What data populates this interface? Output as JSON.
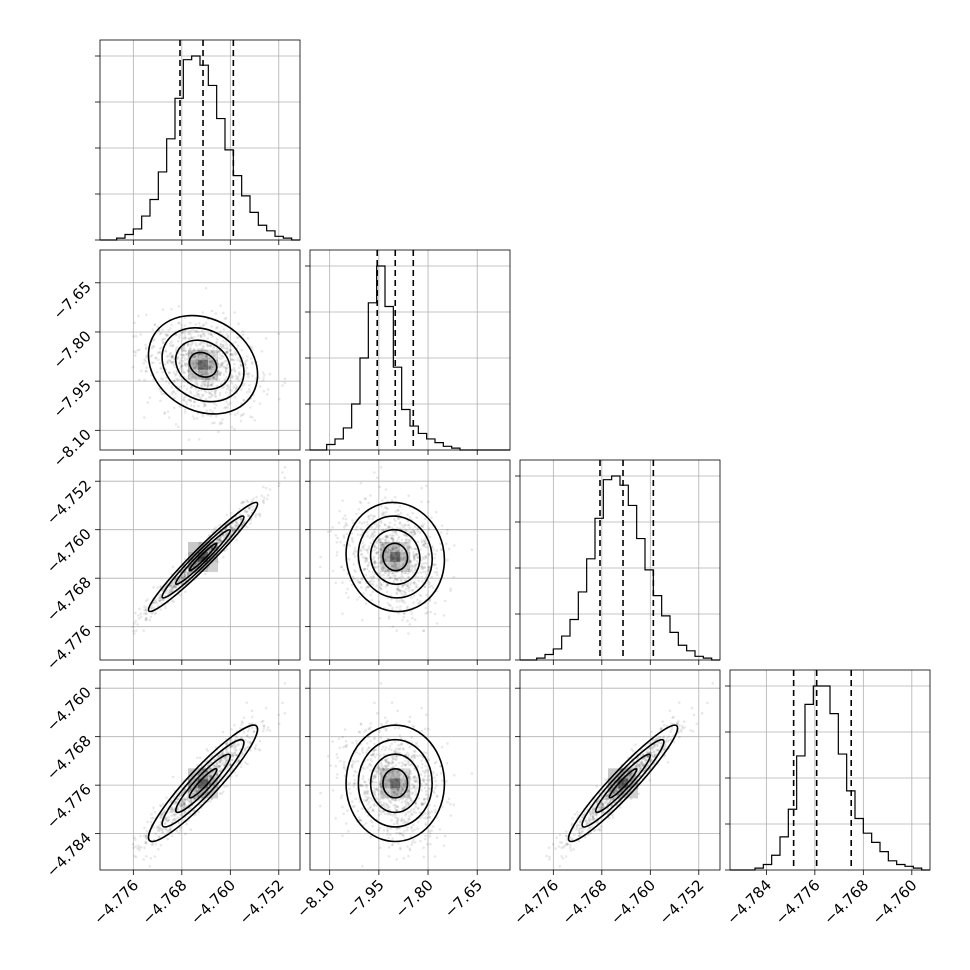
{
  "chart_data": {
    "type": "corner",
    "parameters": [
      {
        "range": [
          -4.7815,
          -4.7485
        ],
        "ticks": [
          -4.776,
          -4.768,
          -4.76,
          -4.752
        ],
        "tick_labels": [
          "−4.776",
          "−4.768",
          "−4.760",
          "−4.752"
        ],
        "mean": -4.7645,
        "sd": 0.0045,
        "quantiles": [
          -4.7683,
          -4.7645,
          -4.7595
        ]
      },
      {
        "range": [
          -8.16,
          -7.55
        ],
        "ticks": [
          -8.1,
          -7.95,
          -7.8,
          -7.65
        ],
        "tick_labels": [
          "−8.10",
          "−7.95",
          "−7.80",
          "−7.65"
        ],
        "mean": -7.9,
        "sd": 0.075,
        "quantiles": [
          -7.955,
          -7.9,
          -7.845
        ]
      },
      {
        "range": [
          -4.7815,
          -4.7485
        ],
        "ticks": [
          -4.776,
          -4.768,
          -4.76,
          -4.752
        ],
        "tick_labels": [
          "−4.776",
          "−4.768",
          "−4.760",
          "−4.752"
        ],
        "mean": -4.7645,
        "sd": 0.0045,
        "quantiles": [
          -4.7683,
          -4.7645,
          -4.7595
        ]
      },
      {
        "range": [
          -4.79,
          -4.757
        ],
        "ticks": [
          -4.784,
          -4.776,
          -4.768,
          -4.76
        ],
        "tick_labels": [
          "−4.784",
          "−4.776",
          "−4.768",
          "−4.760"
        ],
        "mean": -4.7757,
        "sd": 0.0048,
        "quantiles": [
          -4.7795,
          -4.7757,
          -4.77
        ]
      }
    ],
    "correlations": {
      "1-0": -0.2,
      "2-0": 0.97,
      "2-1": -0.05,
      "3-0": 0.93,
      "3-1": 0.0,
      "3-2": 0.95
    },
    "histograms": [
      {
        "bins": 24,
        "counts": [
          0,
          0,
          1,
          3,
          6,
          13,
          22,
          37,
          55,
          77,
          98,
          100,
          95,
          84,
          66,
          49,
          35,
          24,
          15,
          8,
          5,
          2,
          1,
          0
        ]
      },
      {
        "bins": 24,
        "counts": [
          0,
          0,
          3,
          6,
          12,
          25,
          50,
          80,
          100,
          78,
          45,
          22,
          13,
          9,
          6,
          4,
          2,
          1,
          0,
          0,
          0,
          0,
          0,
          0
        ]
      },
      {
        "bins": 24,
        "counts": [
          0,
          0,
          1,
          3,
          6,
          13,
          22,
          37,
          55,
          77,
          98,
          100,
          95,
          84,
          66,
          49,
          35,
          24,
          15,
          8,
          5,
          2,
          1,
          0
        ]
      },
      {
        "bins": 24,
        "counts": [
          0,
          0,
          0,
          1,
          3,
          8,
          18,
          33,
          62,
          90,
          100,
          100,
          85,
          63,
          43,
          28,
          20,
          15,
          10,
          5,
          3,
          2,
          1,
          0
        ]
      }
    ],
    "hist_ticks": [
      0.25,
      0.5,
      0.75,
      1.0
    ],
    "contour_levels_sigma": [
      0.5,
      1.0,
      1.5,
      2.0
    ],
    "grid": true,
    "title": "",
    "legend": "none"
  }
}
